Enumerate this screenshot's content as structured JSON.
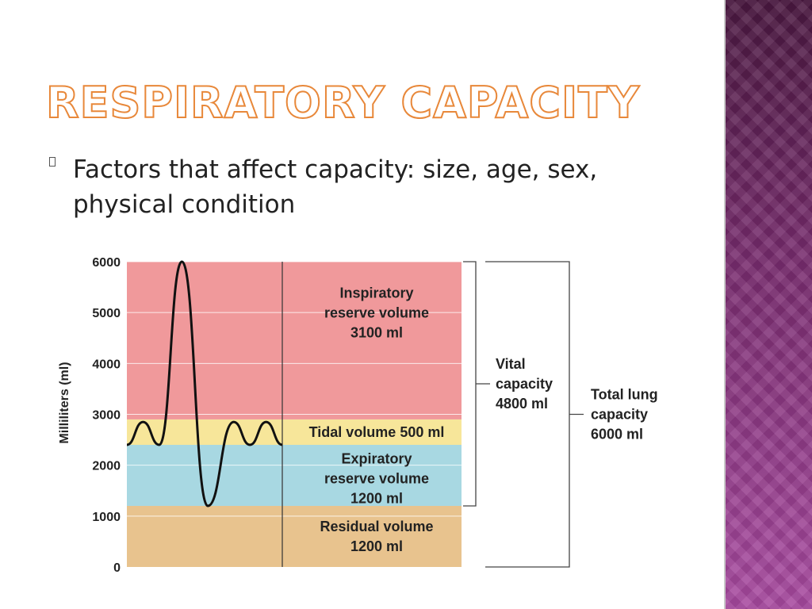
{
  "slide": {
    "title": "Respiratory Capacity",
    "bullet": "Factors that affect capacity: size, age, sex, physical condition"
  },
  "colors": {
    "inspiratory": "#f0999b",
    "tidal": "#f7e69a",
    "expiratory": "#a8d8e2",
    "residual": "#e8c38e",
    "title_outline": "#e8883a",
    "side_panel": "#8f3a86"
  },
  "chart_data": {
    "type": "area",
    "ylabel": "Milliliters (ml)",
    "ylim": [
      0,
      6000
    ],
    "yticks": [
      0,
      1000,
      2000,
      3000,
      4000,
      5000,
      6000
    ],
    "regions": [
      {
        "id": "residual",
        "lines": [
          "Residual volume",
          "1200 ml"
        ],
        "from": 0,
        "to": 1200
      },
      {
        "id": "expiratory",
        "lines": [
          "Expiratory",
          "reserve volume",
          "1200 ml"
        ],
        "from": 1200,
        "to": 2400
      },
      {
        "id": "tidal",
        "lines": [
          "Tidal volume 500 ml"
        ],
        "from": 2400,
        "to": 2900
      },
      {
        "id": "inspiratory",
        "lines": [
          "Inspiratory",
          "reserve volume",
          "3100 ml"
        ],
        "from": 2900,
        "to": 6000
      }
    ],
    "brackets": [
      {
        "id": "vital",
        "lines": [
          "Vital",
          "capacity",
          "4800 ml"
        ],
        "from": 1200,
        "to": 6000
      },
      {
        "id": "total",
        "lines": [
          "Total lung",
          "capacity",
          "6000 ml"
        ],
        "from": 0,
        "to": 6000
      }
    ],
    "trace": [
      [
        0,
        2400
      ],
      [
        5,
        2850
      ],
      [
        10,
        2400
      ],
      [
        17,
        6000
      ],
      [
        25,
        1200
      ],
      [
        33,
        2850
      ],
      [
        38,
        2400
      ],
      [
        43,
        2850
      ],
      [
        48,
        2400
      ]
    ]
  }
}
